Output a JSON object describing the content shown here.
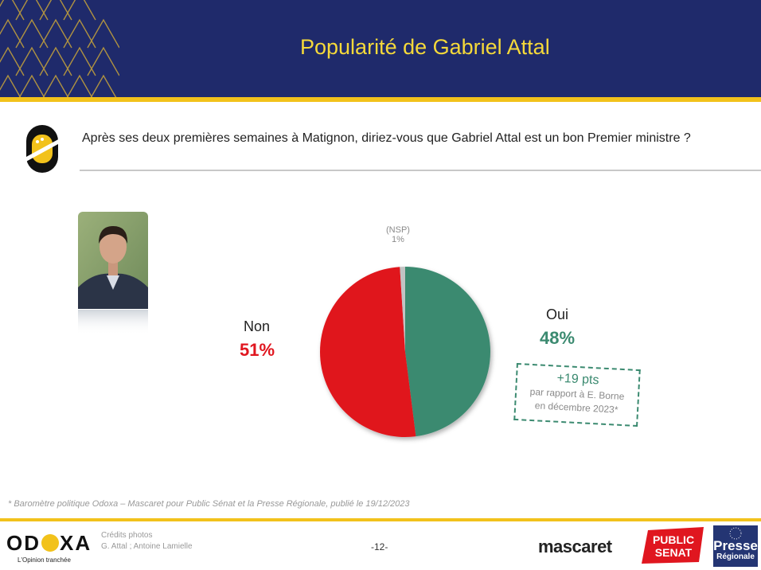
{
  "header": {
    "title": "Popularité de Gabriel Attal"
  },
  "question": {
    "text": "Après ses deux premières semaines à Matignon, diriez-vous que Gabriel Attal est un bon Premier ministre ?"
  },
  "chart_data": {
    "type": "pie",
    "slices": [
      {
        "label": "Oui",
        "value": 48,
        "display": "48%",
        "color": "#3b8a70"
      },
      {
        "label": "Non",
        "value": 51,
        "display": "51%",
        "color": "#e0161f"
      },
      {
        "label": "(NSP)",
        "value": 1,
        "display": "1%",
        "color": "#c3c3c3"
      }
    ],
    "annotation": {
      "main": "+19 pts",
      "sub_line1": "par rapport à E. Borne",
      "sub_line2": "en décembre 2023*"
    }
  },
  "footnote": "* Baromètre politique Odoxa – Mascaret pour Public Sénat et la Presse Régionale, publié le 19/12/2023",
  "footer": {
    "brand": "ODOXA",
    "brand_part1": "OD",
    "brand_part2": "XA",
    "tagline": "L'Opinion tranchée",
    "credits_title": "Crédits photos",
    "credits_text": "G. Attal ;  Antoine Lamielle",
    "page_number": "-12-",
    "partner1": "mascaret",
    "partner2_line1": "PUBLIC",
    "partner2_line2": "SENAT",
    "partner3_line1": "Presse",
    "partner3_line2": "Régionale"
  },
  "colors": {
    "navy": "#1f2a6b",
    "yellow": "#f2c21b",
    "title_yellow": "#f5d93a",
    "oui": "#3b8a70",
    "non": "#e0161f"
  }
}
